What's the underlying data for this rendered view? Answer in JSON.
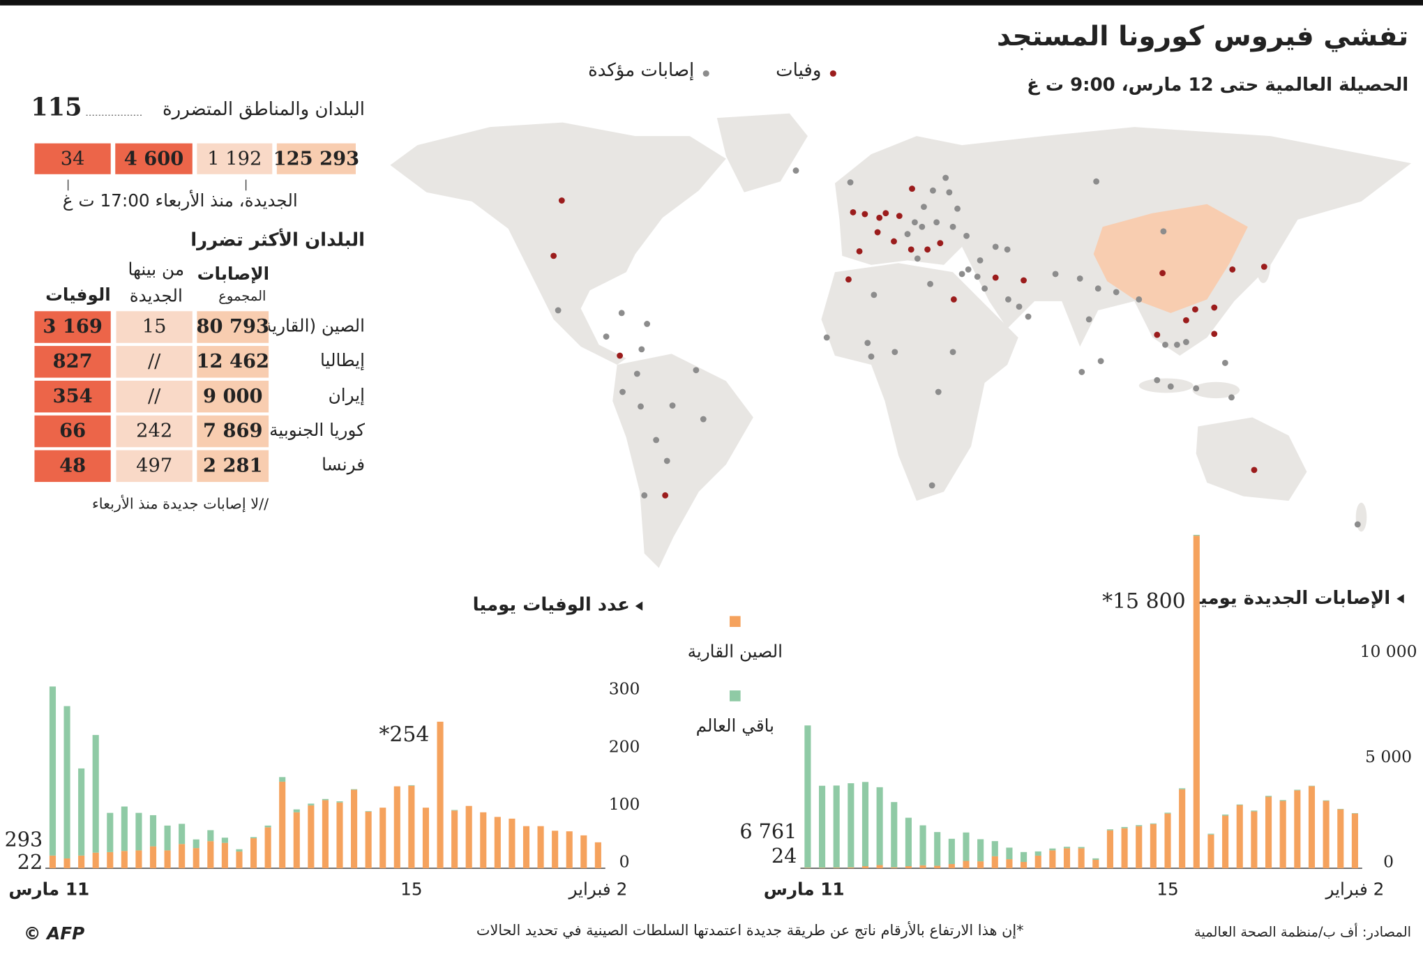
{
  "title": "تفشي فيروس كورونا المستجد",
  "subtitle": "الحصيلة العالمية حتى 12 مارس، 9:00 ت غ",
  "map_legend": {
    "deaths": "وفيات",
    "cases": "إصابات مؤكدة",
    "deaths_color": "#9b1c1c",
    "cases_color": "#8c8c8c",
    "china_color": "#f8cdb0",
    "land_color": "#e8e6e3"
  },
  "summary": {
    "countries_label": "البلدان والمناطق المتضررة",
    "countries": "115",
    "cells": [
      "125 293",
      "1 192",
      "4 600",
      "34"
    ],
    "note": "الجديدة، منذ الأربعاء 17:00 ت غ"
  },
  "top_table": {
    "title": "البلدان الأكثر تضررا",
    "headers": {
      "total_top": "الإصابات",
      "total_sub": "المجموع",
      "new_top": "من بينها",
      "new_sub": "الجديدة",
      "deaths": "الوفيات"
    },
    "rows": [
      [
        "الصين (القارية)",
        "80 793",
        "15",
        "3 169"
      ],
      [
        "إيطاليا",
        "12 462",
        "//",
        "827"
      ],
      [
        "إيران",
        "9 000",
        "//",
        "354"
      ],
      [
        "كوريا الجنوبية",
        "7 869",
        "242",
        "66"
      ],
      [
        "فرنسا",
        "2 281",
        "497",
        "48"
      ]
    ],
    "note": "//لا إصابات جديدة منذ الأربعاء"
  },
  "chart_data": [
    {
      "type": "bar",
      "title": "الإصابات الجديدة يوميا",
      "stacked": true,
      "categories": [
        "2 فبراير",
        null,
        null,
        null,
        null,
        null,
        null,
        null,
        null,
        null,
        null,
        null,
        null,
        "15",
        null,
        null,
        null,
        null,
        null,
        null,
        null,
        null,
        null,
        null,
        null,
        null,
        null,
        null,
        null,
        null,
        null,
        null,
        null,
        null,
        null,
        null,
        null,
        null,
        "11 مارس"
      ],
      "series": [
        {
          "name": "الصين القارية",
          "color": "#f5a25d",
          "values": [
            2600,
            2800,
            3200,
            3900,
            3700,
            3200,
            3400,
            2700,
            3000,
            2500,
            1600,
            15800,
            3750,
            2600,
            2100,
            2000,
            1900,
            1800,
            400,
            950,
            950,
            850,
            600,
            300,
            430,
            570,
            330,
            350,
            200,
            120,
            140,
            100,
            45,
            150,
            100,
            40,
            30,
            20,
            24
          ],
          "value_labels": [
            null,
            null,
            null,
            null,
            null,
            null,
            null,
            null,
            null,
            null,
            null,
            "*15 800",
            null,
            null,
            null,
            null,
            null,
            null,
            null,
            null,
            null,
            null,
            null,
            null,
            null,
            null,
            null,
            null,
            null,
            null,
            null,
            null,
            null,
            null,
            null,
            null,
            null,
            null,
            null
          ]
        },
        {
          "name": "باقي العالم",
          "color": "#8fcaa5",
          "values": [
            20,
            20,
            25,
            20,
            30,
            40,
            40,
            40,
            30,
            50,
            40,
            40,
            50,
            40,
            30,
            50,
            60,
            50,
            70,
            60,
            70,
            90,
            200,
            470,
            550,
            720,
            1050,
            1350,
            1200,
            1600,
            1900,
            2300,
            3100,
            3700,
            4000,
            4000,
            3900,
            3900,
            6761
          ],
          "value_labels": [
            null,
            null,
            null,
            null,
            null,
            null,
            null,
            null,
            null,
            null,
            null,
            null,
            null,
            null,
            null,
            null,
            null,
            null,
            null,
            null,
            null,
            null,
            null,
            null,
            null,
            null,
            null,
            null,
            null,
            null,
            null,
            null,
            null,
            null,
            null,
            null,
            null,
            null,
            "6 761"
          ]
        }
      ],
      "ylim": [
        0,
        16000
      ],
      "yticks": [
        0,
        {
          "value": 5000,
          "label": "5 000"
        },
        {
          "value": 10000,
          "label": "10 000"
        }
      ]
    },
    {
      "type": "bar",
      "title": "عدد الوفيات يوميا",
      "stacked": true,
      "categories": [
        "2 فبراير",
        null,
        null,
        null,
        null,
        null,
        null,
        null,
        null,
        null,
        null,
        null,
        null,
        "15",
        null,
        null,
        null,
        null,
        null,
        null,
        null,
        null,
        null,
        null,
        null,
        null,
        null,
        null,
        null,
        null,
        null,
        null,
        null,
        null,
        null,
        null,
        null,
        null,
        "11 مارس"
      ],
      "series": [
        {
          "color": "#f5a25d",
          "values": [
            45,
            57,
            64,
            65,
            73,
            73,
            86,
            89,
            97,
            108,
            100,
            254,
            105,
            143,
            142,
            105,
            98,
            136,
            114,
            118,
            109,
            97,
            150,
            71,
            52,
            29,
            44,
            47,
            35,
            42,
            31,
            38,
            31,
            30,
            28,
            27,
            22,
            17,
            22
          ],
          "value_labels": [
            null,
            null,
            null,
            null,
            null,
            null,
            null,
            null,
            null,
            null,
            null,
            "*254",
            null,
            null,
            null,
            null,
            null,
            null,
            null,
            null,
            null,
            null,
            null,
            null,
            null,
            null,
            null,
            null,
            null,
            null,
            null,
            null,
            null,
            null,
            null,
            null,
            null,
            null,
            null
          ]
        },
        {
          "color": "#8fcaa5",
          "values": [
            0,
            0,
            0,
            0,
            0,
            0,
            0,
            0,
            0,
            0,
            1,
            0,
            0,
            1,
            0,
            0,
            1,
            1,
            2,
            2,
            3,
            5,
            8,
            3,
            2,
            4,
            9,
            19,
            15,
            35,
            43,
            54,
            65,
            77,
            68,
            204,
            151,
            264,
            293
          ]
        }
      ],
      "ylim": [
        0,
        320
      ],
      "yticks": [
        0,
        100,
        200,
        300
      ]
    }
  ],
  "footer": {
    "source": "المصادر: أف ب/منظمة الصحة العالمية",
    "footnote": "*إن هذا الارتفاع بالأرقام ناتج عن طريقة جديدة اعتمدتها السلطات الصينية في تحديد الحالات",
    "credit": "© AFP"
  }
}
